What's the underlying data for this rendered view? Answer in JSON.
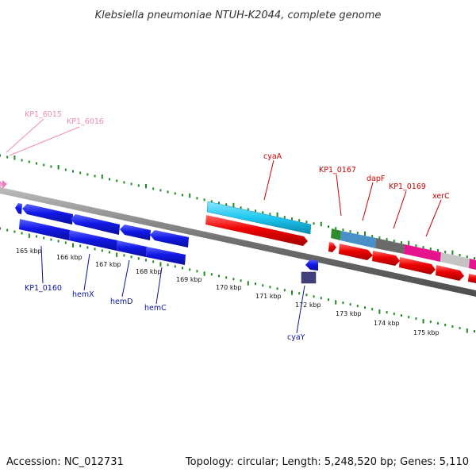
{
  "header": {
    "title": "Klebsiella pneumoniae NTUH-K2044, complete genome"
  },
  "footer": {
    "accession": "Accession: NC_012731",
    "summary": "Topology: circular; Length: 5,248,520 bp; Genes: 5,110"
  },
  "scale_labels": [
    "165 kbp",
    "166 kbp",
    "167 kbp",
    "168 kbp",
    "169 kbp",
    "170 kbp",
    "171 kbp",
    "172 kbp",
    "173 kbp",
    "174 kbp",
    "175 kbp"
  ],
  "gene_labels": {
    "kp1_6015": "KP1_6015",
    "kp1_6016": "KP1_6016",
    "cyaA": "cyaA",
    "kp1_0167": "KP1_0167",
    "dapF": "dapF",
    "kp1_0169": "KP1_0169",
    "xerC": "xerC",
    "kp1_0160": "KP1_0160",
    "hemX": "hemX",
    "hemD": "hemD",
    "hemC": "hemC",
    "cyaY": "cyaY"
  },
  "colors": {
    "outer_tick": "#1f8a1f",
    "inner_tick": "#1f8a1f",
    "backbone": "#8a8a8a",
    "forward_gene": "#e00000",
    "reverse_gene": "#0a14d6",
    "label_forward": "#cc0000",
    "label_reverse": "#0a14a0",
    "label_plasmid": "#f08cb4",
    "cyan_feature": "#1ec8f0",
    "dapF_feature": "#4a90c8",
    "kp1_0169_feature": "#606060",
    "xerC_feature": "#e6148c",
    "next_feature": "#c0c0c0",
    "small_green_feature": "#2e8b2e",
    "cyaY_box": "#40407a"
  }
}
